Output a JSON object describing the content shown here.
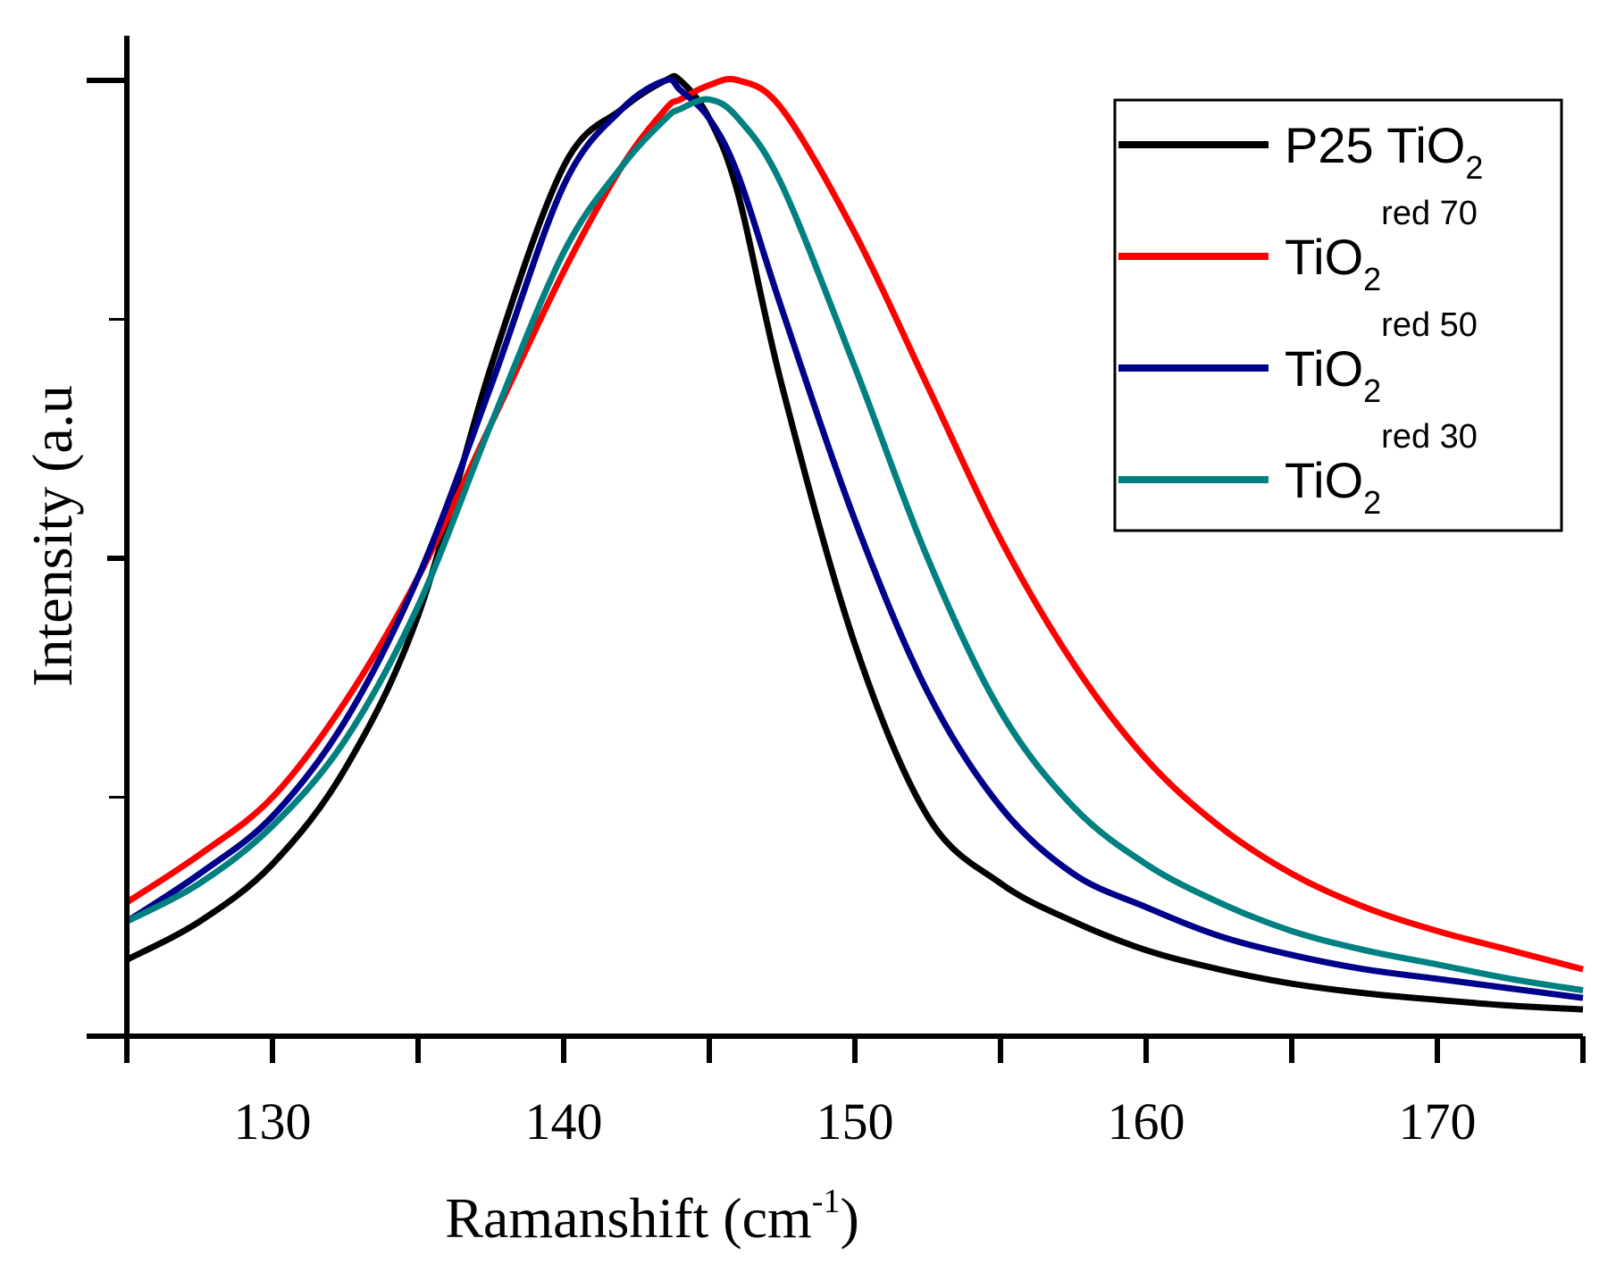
{
  "chart_data": {
    "type": "line",
    "title": "",
    "xlabel": "Ramanshift (cm",
    "xlabel_sup": "-1",
    "xlabel_close": ")",
    "ylabel": "Intensity (a.u",
    "xlim": [
      125,
      175
    ],
    "ylim": [
      0,
      1
    ],
    "x_ticks": [
      130,
      140,
      150,
      160,
      170
    ],
    "x_tick_labels": [
      "130",
      "140",
      "150",
      "160",
      "170"
    ],
    "legend_position": "top-right",
    "legend": [
      {
        "prefix": "P25 TiO",
        "sub": "2",
        "sup": ""
      },
      {
        "prefix": "TiO",
        "sub": "2",
        "sup": "red 70"
      },
      {
        "prefix": "TiO",
        "sub": "2",
        "sup": "red 50"
      },
      {
        "prefix": "TiO",
        "sub": "2",
        "sup": "red 30"
      }
    ],
    "x": [
      125,
      127.5,
      130,
      132.5,
      135,
      137.5,
      140,
      142,
      143.5,
      144,
      145,
      146,
      147.5,
      150,
      152.5,
      155,
      157.5,
      160,
      162.5,
      165,
      167.5,
      170,
      172.5,
      175
    ],
    "series": [
      {
        "name": "P25 TiO2",
        "color": "#000000",
        "values": [
          0.08,
          0.12,
          0.18,
          0.28,
          0.44,
          0.7,
          0.91,
          0.97,
          1.0,
          1.0,
          0.96,
          0.88,
          0.68,
          0.41,
          0.23,
          0.16,
          0.12,
          0.09,
          0.07,
          0.055,
          0.045,
          0.038,
          0.032,
          0.028
        ]
      },
      {
        "name": "TiO2 red 70",
        "color": "#ff0000",
        "values": [
          0.14,
          0.19,
          0.25,
          0.35,
          0.48,
          0.64,
          0.8,
          0.91,
          0.97,
          0.98,
          0.995,
          1.0,
          0.97,
          0.84,
          0.68,
          0.52,
          0.39,
          0.29,
          0.22,
          0.17,
          0.135,
          0.11,
          0.09,
          0.07
        ]
      },
      {
        "name": "TiO2 red 50",
        "color": "#00008b",
        "values": [
          0.12,
          0.17,
          0.23,
          0.33,
          0.48,
          0.68,
          0.89,
          0.97,
          1.0,
          0.99,
          0.96,
          0.9,
          0.76,
          0.54,
          0.36,
          0.24,
          0.17,
          0.135,
          0.105,
          0.085,
          0.07,
          0.06,
          0.05,
          0.04
        ]
      },
      {
        "name": "TiO2 red 30",
        "color": "#008080",
        "values": [
          0.12,
          0.16,
          0.22,
          0.31,
          0.45,
          0.64,
          0.82,
          0.91,
          0.96,
          0.97,
          0.98,
          0.96,
          0.89,
          0.7,
          0.5,
          0.34,
          0.24,
          0.18,
          0.14,
          0.11,
          0.09,
          0.075,
          0.06,
          0.048
        ]
      }
    ]
  }
}
